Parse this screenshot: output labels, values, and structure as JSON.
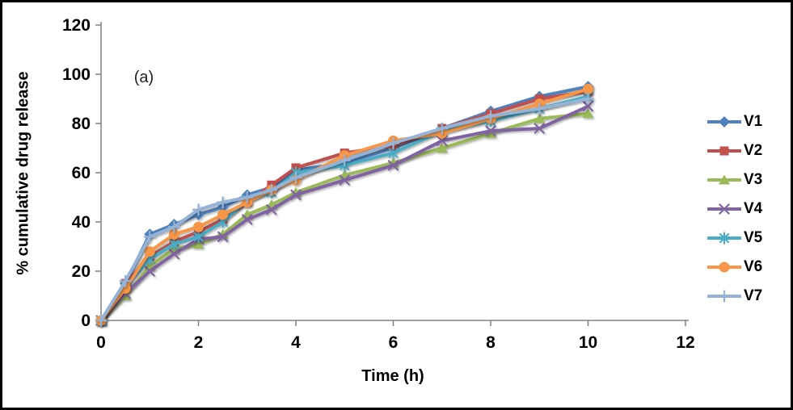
{
  "chart_data": {
    "type": "line",
    "title": "",
    "annotation": "(a)",
    "xlabel": "Time (h)",
    "ylabel": "% cumulative drug release",
    "xlim": [
      0,
      12
    ],
    "ylim": [
      0,
      120
    ],
    "xticks": [
      0,
      2,
      4,
      6,
      8,
      10,
      12
    ],
    "yticks": [
      0,
      20,
      40,
      60,
      80,
      100,
      120
    ],
    "grid": false,
    "legend_position": "right-outside",
    "axis_color": "#808080",
    "text_color": "#000000",
    "x": [
      0,
      0.5,
      1,
      1.5,
      2,
      2.5,
      3,
      3.5,
      4,
      5,
      6,
      7,
      8,
      9,
      10
    ],
    "series": [
      {
        "name": "V1",
        "color": "#4F81BD",
        "marker": "diamond",
        "values": [
          0,
          15,
          35,
          39,
          43,
          46,
          51,
          54,
          61,
          64,
          70,
          78,
          85,
          91,
          95
        ]
      },
      {
        "name": "V2",
        "color": "#C0504D",
        "marker": "square",
        "values": [
          0,
          15,
          26,
          32,
          36,
          41,
          48,
          55,
          62,
          68,
          71,
          78,
          84,
          90,
          93
        ]
      },
      {
        "name": "V3",
        "color": "#9BBB59",
        "marker": "triangle",
        "values": [
          0,
          10,
          22,
          29,
          31,
          35,
          43,
          47,
          52,
          59,
          64,
          70,
          76,
          82,
          84
        ]
      },
      {
        "name": "V4",
        "color": "#8064A2",
        "marker": "x",
        "values": [
          0,
          11,
          20,
          27,
          33,
          34,
          41,
          45,
          51,
          57,
          63,
          73,
          77,
          78,
          87
        ]
      },
      {
        "name": "V5",
        "color": "#4BACC6",
        "marker": "asterisk",
        "values": [
          0,
          14,
          25,
          31,
          34,
          40,
          49,
          52,
          60,
          63,
          68,
          77,
          81,
          86,
          91
        ]
      },
      {
        "name": "V6",
        "color": "#F79646",
        "marker": "circle",
        "values": [
          0,
          13,
          28,
          35,
          38,
          43,
          48,
          53,
          57,
          67,
          73,
          76,
          82,
          88,
          94
        ]
      },
      {
        "name": "V7",
        "color": "#95B3D7",
        "marker": "plus",
        "values": [
          0,
          16,
          34,
          38,
          45,
          48,
          50,
          53,
          58,
          65,
          72,
          78,
          83,
          86,
          90
        ]
      }
    ]
  }
}
